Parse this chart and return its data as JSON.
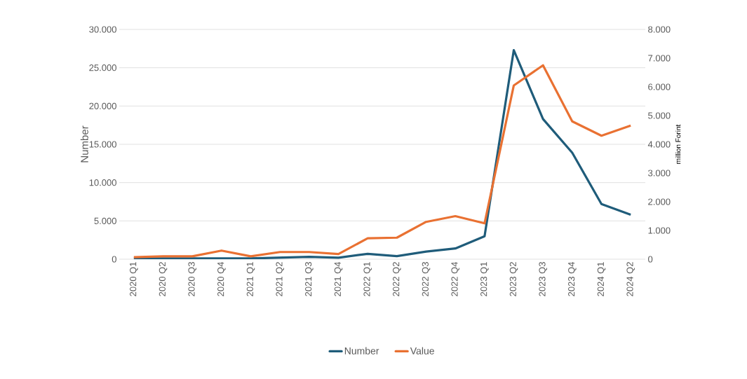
{
  "chart_data": {
    "type": "line",
    "xlabel": null,
    "ylabel": "Number",
    "y2label": "million Forint",
    "categories": [
      "2020 Q1",
      "2020 Q2",
      "2020 Q3",
      "2020 Q4",
      "2021 Q1",
      "2021 Q2",
      "2021 Q3",
      "2021 Q4",
      "2022 Q1",
      "2022 Q2",
      "2022 Q3",
      "2022 Q4",
      "2023 Q1",
      "2023 Q2",
      "2023 Q3",
      "2023 Q4",
      "2024 Q1",
      "2024 Q2"
    ],
    "series": [
      {
        "name": "Number",
        "color": "#1f5c7a",
        "values": [
          100,
          100,
          100,
          100,
          100,
          200,
          300,
          200,
          700,
          400,
          1000,
          1400,
          3000,
          27300,
          18300,
          13900,
          7200,
          5800
        ]
      },
      {
        "name": "Value",
        "color": "#e97132",
        "axis": "y2",
        "values": [
          70,
          100,
          100,
          300,
          100,
          250,
          250,
          180,
          730,
          750,
          1300,
          1500,
          1250,
          6050,
          6750,
          4800,
          4300,
          4650
        ]
      }
    ],
    "ylim": [
      0,
      30000
    ],
    "yticks": [
      0,
      {
        "value": 5000,
        "label": "5.000"
      },
      {
        "value": 10000,
        "label": "10.000"
      },
      {
        "value": 15000,
        "label": "15.000"
      },
      {
        "value": 20000,
        "label": "20.000"
      },
      {
        "value": 25000,
        "label": "25.000"
      },
      {
        "value": 30000,
        "label": "30.000"
      }
    ],
    "y2lim": [
      0,
      8000
    ],
    "y2ticks": [
      0,
      {
        "value": 1000,
        "label": "1.000"
      },
      {
        "value": 2000,
        "label": "2.000"
      },
      {
        "value": 3000,
        "label": "3.000"
      },
      {
        "value": 4000,
        "label": "4.000"
      },
      {
        "value": 5000,
        "label": "5.000"
      },
      {
        "value": 6000,
        "label": "6.000"
      },
      {
        "value": 7000,
        "label": "7.000"
      },
      {
        "value": 8000,
        "label": "8.000"
      }
    ],
    "grid": "y",
    "legend": "bottom"
  }
}
